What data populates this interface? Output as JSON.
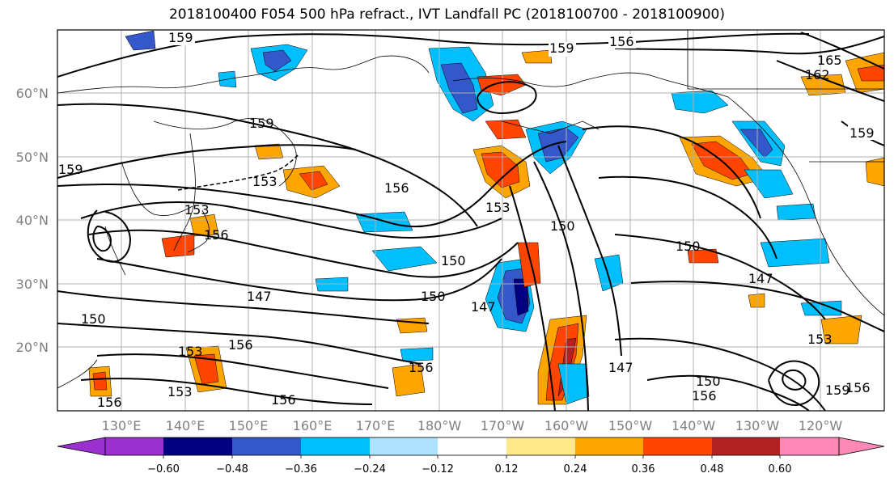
{
  "title": "2018100400 F054 500 hPa refract., IVT Landfall PC (2018100700 - 2018100900)",
  "lat_labels": [
    "60°N",
    "50°N",
    "40°N",
    "30°N",
    "20°N"
  ],
  "lon_labels": [
    "130°E",
    "140°E",
    "150°E",
    "160°E",
    "170°E",
    "180°W",
    "170°W",
    "160°W",
    "150°W",
    "140°W",
    "130°W",
    "120°W"
  ],
  "colorbar": {
    "ticks": [
      "−0.60",
      "−0.48",
      "−0.36",
      "−0.24",
      "−0.12",
      "0.12",
      "0.24",
      "0.36",
      "0.48",
      "0.60"
    ],
    "colors": [
      "#9b30d0",
      "#000080",
      "#3457c9",
      "#00bfff",
      "#aee2ff",
      "#ffffff",
      "#ffe98a",
      "#ffa500",
      "#ff4500",
      "#b22222",
      "#ff89b6"
    ]
  },
  "contour_labels": [
    "159",
    "159",
    "156",
    "165",
    "162",
    "159",
    "159",
    "153",
    "156",
    "153",
    "150",
    "150",
    "147",
    "147",
    "150",
    "147",
    "153",
    "156",
    "153",
    "156",
    "150",
    "156",
    "147",
    "150",
    "153",
    "156",
    "150",
    "156",
    "153",
    "156",
    "156",
    "159",
    "159"
  ]
}
